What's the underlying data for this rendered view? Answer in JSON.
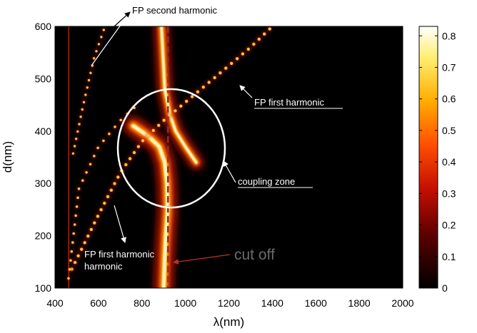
{
  "chart_data": {
    "type": "heatmap",
    "title": "",
    "xlabel": "λ(nm)",
    "ylabel": "d(nm)",
    "xlim": [
      400,
      2000
    ],
    "ylim": [
      100,
      600
    ],
    "xticks": [
      "400",
      "600",
      "800",
      "1000",
      "1200",
      "1400",
      "1600",
      "1800",
      "2000"
    ],
    "yticks": [
      "100",
      "200",
      "300",
      "400",
      "500",
      "600"
    ],
    "colorbar": {
      "range": [
        0,
        0.83
      ],
      "ticks": [
        "0",
        "0.1",
        "0.2",
        "0.3",
        "0.4",
        "0.5",
        "0.6",
        "0.7",
        "0.8"
      ],
      "colormap": "hot"
    },
    "features": {
      "main_mode_upper": [
        [
          890,
          600
        ],
        [
          900,
          520
        ],
        [
          905,
          480
        ],
        [
          930,
          430
        ],
        [
          955,
          400
        ],
        [
          1000,
          370
        ],
        [
          1050,
          340
        ]
      ],
      "main_mode_lower": [
        [
          760,
          410
        ],
        [
          830,
          390
        ],
        [
          880,
          370
        ],
        [
          905,
          340
        ],
        [
          915,
          300
        ],
        [
          918,
          250
        ],
        [
          910,
          200
        ],
        [
          905,
          160
        ],
        [
          900,
          100
        ]
      ],
      "fp_first_harmonic_line": [
        [
          470,
          130
        ],
        [
          600,
          240
        ],
        [
          700,
          320
        ],
        [
          800,
          380
        ],
        [
          900,
          420
        ],
        [
          1000,
          455
        ],
        [
          1100,
          490
        ],
        [
          1200,
          525
        ],
        [
          1300,
          560
        ],
        [
          1400,
          600
        ]
      ],
      "fp_first_harmonic_steep": [
        [
          460,
          110
        ],
        [
          510,
          290
        ],
        [
          600,
          370
        ],
        [
          700,
          420
        ],
        [
          780,
          450
        ]
      ],
      "fp_second_harmonic_line": [
        [
          480,
          350
        ],
        [
          530,
          450
        ],
        [
          580,
          540
        ],
        [
          630,
          600
        ]
      ],
      "vertical_edge_nm": 460,
      "cutoff_nm": 920
    },
    "annotations": [
      {
        "text": "FP second harmonic"
      },
      {
        "text": "FP first harmonic"
      },
      {
        "text": "coupling zone"
      },
      {
        "text": "FP first harmonic"
      },
      {
        "text": "cut off"
      }
    ]
  },
  "colors": {
    "cutoff_line": "#a0282a",
    "cutoff_arrow": "#c0302a",
    "annotation_white": "#ffffff",
    "annotation_black": "#000000",
    "cutoff_label": "#6b6b6b"
  }
}
